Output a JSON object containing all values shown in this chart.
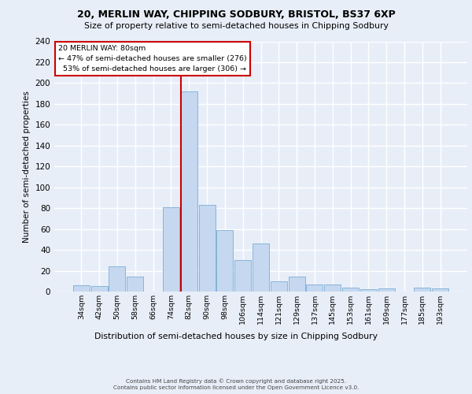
{
  "title_line1": "20, MERLIN WAY, CHIPPING SODBURY, BRISTOL, BS37 6XP",
  "title_line2": "Size of property relative to semi-detached houses in Chipping Sodbury",
  "xlabel": "Distribution of semi-detached houses by size in Chipping Sodbury",
  "ylabel": "Number of semi-detached properties",
  "categories": [
    "34sqm",
    "42sqm",
    "50sqm",
    "58sqm",
    "66sqm",
    "74sqm",
    "82sqm",
    "90sqm",
    "98sqm",
    "106sqm",
    "114sqm",
    "121sqm",
    "129sqm",
    "137sqm",
    "145sqm",
    "153sqm",
    "161sqm",
    "169sqm",
    "177sqm",
    "185sqm",
    "193sqm"
  ],
  "values": [
    6,
    5,
    24,
    14,
    0,
    81,
    192,
    83,
    59,
    30,
    46,
    10,
    14,
    7,
    7,
    4,
    2,
    3,
    0,
    4,
    3
  ],
  "bar_color": "#c5d8f0",
  "bar_edge_color": "#7aadd4",
  "vline_color": "#cc0000",
  "annotation_box_color": "#cc0000",
  "background_color": "#e8eef8",
  "grid_color": "#ffffff",
  "ylim": [
    0,
    240
  ],
  "yticks": [
    0,
    20,
    40,
    60,
    80,
    100,
    120,
    140,
    160,
    180,
    200,
    220,
    240
  ],
  "pct_smaller": 47,
  "count_smaller": 276,
  "pct_larger": 53,
  "count_larger": 306,
  "footer": "Contains HM Land Registry data © Crown copyright and database right 2025.\nContains public sector information licensed under the Open Government Licence v3.0."
}
